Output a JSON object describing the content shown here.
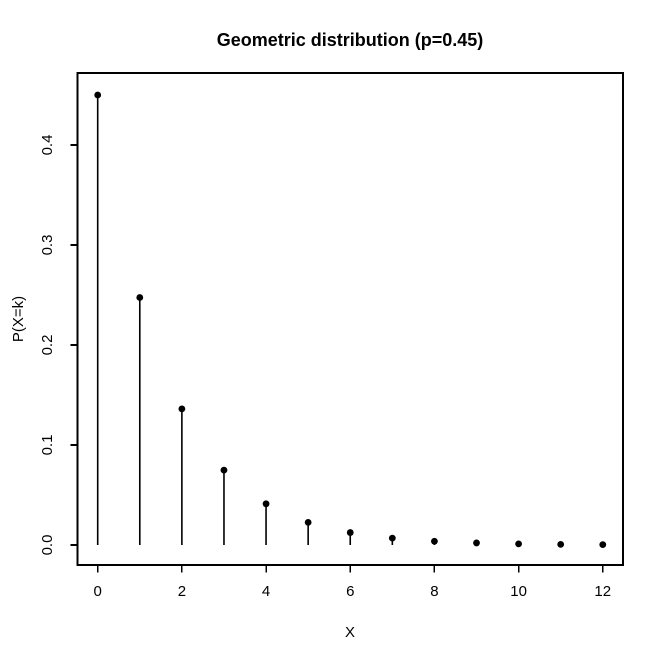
{
  "page": {
    "background_color": "#ffffff"
  },
  "chart_data": {
    "type": "stem",
    "title": "Geometric distribution (p=0.45)",
    "xlabel": "X",
    "ylabel": "P(X=k)",
    "distribution": "geometric",
    "p": 0.45,
    "x": [
      0,
      1,
      2,
      3,
      4,
      5,
      6,
      7,
      8,
      9,
      10,
      11,
      12
    ],
    "y": [
      0.45,
      0.2475,
      0.136125,
      0.074869,
      0.041178,
      0.022648,
      0.012456,
      0.006851,
      0.003768,
      0.002072,
      0.00114,
      0.000627,
      0.000345
    ],
    "x_ticks": {
      "values": [
        0,
        2,
        4,
        6,
        8,
        10,
        12
      ],
      "labels": [
        "0",
        "2",
        "4",
        "6",
        "8",
        "10",
        "12"
      ]
    },
    "y_ticks": {
      "values": [
        0,
        0.1,
        0.2,
        0.3,
        0.4
      ],
      "labels": [
        "0.0",
        "0.1",
        "0.2",
        "0.3",
        "0.4"
      ]
    },
    "xlim": [
      0,
      12
    ],
    "ylim": [
      0,
      0.45
    ],
    "grid": false,
    "legend": "none",
    "marker": "filled-circle",
    "stem_baseline": 0,
    "colors": {
      "background": "#ffffff",
      "axis": "#000000",
      "stems": "#000000",
      "points": "#000000",
      "text": "#000000"
    }
  }
}
